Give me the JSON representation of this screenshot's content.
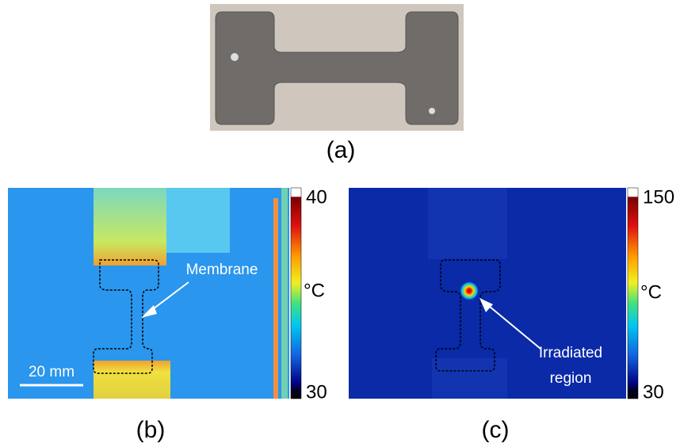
{
  "panels": [
    {
      "label": "(a)"
    },
    {
      "label": "(b)",
      "colorbar": {
        "max": "40",
        "unit": "°C",
        "min": "30"
      },
      "annotation": "Membrane",
      "scale_bar": "20 mm"
    },
    {
      "label": "(c)",
      "colorbar": {
        "max": "150",
        "unit": "°C",
        "min": "30"
      },
      "annotation": [
        "Irradiated",
        "region"
      ]
    }
  ]
}
